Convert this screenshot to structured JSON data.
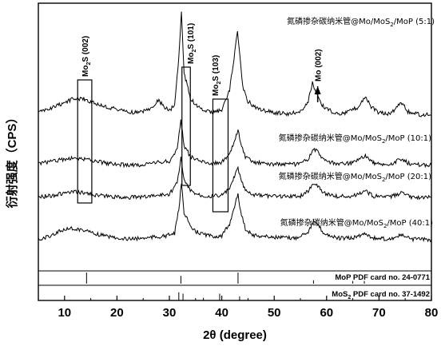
{
  "chart_data": {
    "type": "line",
    "xlabel": "2θ (degree)",
    "ylabel": "衍射强度（CPS）",
    "xlim": [
      5,
      80
    ],
    "x_ticks": [
      "10",
      "20",
      "30",
      "40",
      "50",
      "60",
      "70",
      "80"
    ],
    "series": [
      {
        "name": "氮磷掺杂碳纳米管@Mo/MoS₂/MoP (5:1)",
        "label_parts": [
          "氮磷掺杂碳纳米管@Mo/MoS",
          "2",
          "/MoP (5:1)"
        ],
        "points": [
          [
            5,
            0.05
          ],
          [
            8,
            0.1
          ],
          [
            10,
            0.14
          ],
          [
            12,
            0.18
          ],
          [
            14,
            0.17
          ],
          [
            16,
            0.13
          ],
          [
            18,
            0.1
          ],
          [
            20,
            0.08
          ],
          [
            22,
            0.06
          ],
          [
            24,
            0.05
          ],
          [
            26,
            0.08
          ],
          [
            28,
            0.16
          ],
          [
            29,
            0.1
          ],
          [
            30,
            0.07
          ],
          [
            31,
            0.12
          ],
          [
            31.8,
            0.55
          ],
          [
            32.3,
            0.95
          ],
          [
            32.8,
            0.4
          ],
          [
            33.4,
            0.3
          ],
          [
            34,
            0.18
          ],
          [
            35,
            0.12
          ],
          [
            36,
            0.08
          ],
          [
            38,
            0.05
          ],
          [
            40,
            0.07
          ],
          [
            41.5,
            0.25
          ],
          [
            42.5,
            0.6
          ],
          [
            43,
            0.78
          ],
          [
            43.5,
            0.52
          ],
          [
            44,
            0.28
          ],
          [
            45,
            0.15
          ],
          [
            47,
            0.08
          ],
          [
            50,
            0.05
          ],
          [
            53,
            0.04
          ],
          [
            55,
            0.06
          ],
          [
            56.5,
            0.15
          ],
          [
            57.3,
            0.32
          ],
          [
            58,
            0.22
          ],
          [
            58.5,
            0.18
          ],
          [
            59,
            0.12
          ],
          [
            61,
            0.06
          ],
          [
            63,
            0.04
          ],
          [
            65,
            0.08
          ],
          [
            66,
            0.1
          ],
          [
            67.4,
            0.2
          ],
          [
            68.5,
            0.1
          ],
          [
            70,
            0.05
          ],
          [
            72,
            0.04
          ],
          [
            73,
            0.08
          ],
          [
            74.2,
            0.15
          ],
          [
            75.5,
            0.06
          ],
          [
            78,
            0.03
          ],
          [
            80,
            0.03
          ]
        ]
      },
      {
        "name": "氮磷掺杂碳纳米管@Mo/MoS₂/MoP (10:1)",
        "label_parts": [
          "氮磷掺杂碳纳米管@Mo/MoS",
          "2",
          "/MoP (10:1)"
        ],
        "points": [
          [
            5,
            0.06
          ],
          [
            8,
            0.08
          ],
          [
            10,
            0.1
          ],
          [
            12,
            0.11
          ],
          [
            14,
            0.1
          ],
          [
            16,
            0.08
          ],
          [
            18,
            0.06
          ],
          [
            20,
            0.05
          ],
          [
            22,
            0.04
          ],
          [
            24,
            0.04
          ],
          [
            26,
            0.05
          ],
          [
            28,
            0.07
          ],
          [
            30,
            0.08
          ],
          [
            31.5,
            0.2
          ],
          [
            32.2,
            0.48
          ],
          [
            32.8,
            0.22
          ],
          [
            33.4,
            0.18
          ],
          [
            34,
            0.12
          ],
          [
            36,
            0.08
          ],
          [
            38,
            0.06
          ],
          [
            40,
            0.07
          ],
          [
            41.5,
            0.14
          ],
          [
            42.6,
            0.3
          ],
          [
            43.1,
            0.38
          ],
          [
            43.6,
            0.25
          ],
          [
            44.5,
            0.12
          ],
          [
            46,
            0.07
          ],
          [
            50,
            0.05
          ],
          [
            55,
            0.05
          ],
          [
            56.5,
            0.1
          ],
          [
            57.5,
            0.2
          ],
          [
            58.3,
            0.17
          ],
          [
            59.5,
            0.09
          ],
          [
            62,
            0.05
          ],
          [
            65,
            0.06
          ],
          [
            67.4,
            0.13
          ],
          [
            69,
            0.06
          ],
          [
            72,
            0.04
          ],
          [
            74.2,
            0.1
          ],
          [
            76,
            0.05
          ],
          [
            80,
            0.04
          ]
        ]
      },
      {
        "name": "氮磷掺杂碳纳米管@Mo/MoS₂/MoP (20:1)",
        "label_parts": [
          "氮磷掺杂碳纳米管@Mo/MoS",
          "2",
          "/MoP (20:1)"
        ],
        "points": [
          [
            5,
            0.04
          ],
          [
            8,
            0.06
          ],
          [
            10,
            0.08
          ],
          [
            12,
            0.09
          ],
          [
            14,
            0.08
          ],
          [
            16,
            0.06
          ],
          [
            18,
            0.05
          ],
          [
            20,
            0.04
          ],
          [
            22,
            0.04
          ],
          [
            24,
            0.04
          ],
          [
            26,
            0.05
          ],
          [
            28,
            0.06
          ],
          [
            30,
            0.07
          ],
          [
            31.5,
            0.18
          ],
          [
            32.2,
            0.42
          ],
          [
            32.8,
            0.2
          ],
          [
            33.4,
            0.16
          ],
          [
            34,
            0.1
          ],
          [
            36,
            0.06
          ],
          [
            38,
            0.05
          ],
          [
            40,
            0.06
          ],
          [
            41.5,
            0.12
          ],
          [
            42.6,
            0.26
          ],
          [
            43.1,
            0.32
          ],
          [
            43.6,
            0.22
          ],
          [
            44.5,
            0.1
          ],
          [
            46,
            0.06
          ],
          [
            50,
            0.05
          ],
          [
            55,
            0.05
          ],
          [
            56.5,
            0.1
          ],
          [
            57.5,
            0.18
          ],
          [
            58.3,
            0.15
          ],
          [
            59.5,
            0.08
          ],
          [
            62,
            0.05
          ],
          [
            65,
            0.05
          ],
          [
            67.4,
            0.1
          ],
          [
            69,
            0.05
          ],
          [
            72,
            0.04
          ],
          [
            74.2,
            0.08
          ],
          [
            76,
            0.04
          ],
          [
            80,
            0.04
          ]
        ]
      },
      {
        "name": "氮磷掺杂碳纳米管@Mo/MoS₂/MoP (40:1)",
        "label_parts": [
          "氮磷掺杂碳纳米管@Mo/MoS",
          "2",
          "/MoP (40:1)"
        ],
        "points": [
          [
            5,
            0.03
          ],
          [
            7,
            0.07
          ],
          [
            9,
            0.12
          ],
          [
            11,
            0.15
          ],
          [
            13,
            0.14
          ],
          [
            15,
            0.11
          ],
          [
            17,
            0.08
          ],
          [
            19,
            0.06
          ],
          [
            21,
            0.05
          ],
          [
            23,
            0.04
          ],
          [
            25,
            0.05
          ],
          [
            27,
            0.06
          ],
          [
            29,
            0.07
          ],
          [
            31,
            0.1
          ],
          [
            31.8,
            0.35
          ],
          [
            32.3,
            0.62
          ],
          [
            32.8,
            0.32
          ],
          [
            33.4,
            0.26
          ],
          [
            34,
            0.16
          ],
          [
            35,
            0.12
          ],
          [
            36,
            0.1
          ],
          [
            38,
            0.07
          ],
          [
            40,
            0.07
          ],
          [
            41.5,
            0.2
          ],
          [
            42.6,
            0.42
          ],
          [
            43.1,
            0.5
          ],
          [
            43.6,
            0.33
          ],
          [
            44.5,
            0.15
          ],
          [
            46,
            0.08
          ],
          [
            50,
            0.06
          ],
          [
            54,
            0.05
          ],
          [
            56.5,
            0.12
          ],
          [
            57.5,
            0.22
          ],
          [
            58.3,
            0.19
          ],
          [
            59.5,
            0.1
          ],
          [
            62,
            0.05
          ],
          [
            65,
            0.05
          ],
          [
            67.4,
            0.1
          ],
          [
            69,
            0.05
          ],
          [
            72,
            0.04
          ],
          [
            74.2,
            0.08
          ],
          [
            76,
            0.04
          ],
          [
            80,
            0.03
          ]
        ]
      }
    ],
    "reference_patterns": [
      {
        "name": "MoP PDF card no. 24-0771",
        "label_parts": [
          "MoP PDF card no. 24-0771"
        ],
        "peaks": [
          [
            14.2,
            1.0
          ],
          [
            32.2,
            0.7
          ],
          [
            43.1,
            1.0
          ],
          [
            57.5,
            0.3
          ],
          [
            65.0,
            0.25
          ],
          [
            67.2,
            0.25
          ]
        ]
      },
      {
        "name": "MoS₂ PDF card no. 37-1492",
        "label_parts": [
          "MoS",
          "2",
          " PDF card no. 37-1492"
        ],
        "peaks": [
          [
            31.8,
            0.6
          ],
          [
            32.6,
            0.5
          ],
          [
            36.5,
            0.2
          ],
          [
            39.6,
            0.5
          ],
          [
            43.4,
            0.3
          ]
        ]
      }
    ],
    "highlight_boxes": [
      {
        "label_parts": [
          "Mo",
          "2",
          "S (002)"
        ],
        "x_range": [
          12.5,
          15.2
        ]
      },
      {
        "label_parts": [
          "Mo",
          "2",
          "S (101)"
        ],
        "x_range": [
          32.4,
          34.0
        ]
      },
      {
        "label_parts": [
          "Mo",
          "2",
          "S (103)"
        ],
        "x_range": [
          38.3,
          41.2
        ]
      }
    ],
    "annotations": [
      {
        "label": "Mo (002)",
        "x": 58.3
      }
    ],
    "legend_placement": "inline labels above each curve",
    "grid": false
  }
}
